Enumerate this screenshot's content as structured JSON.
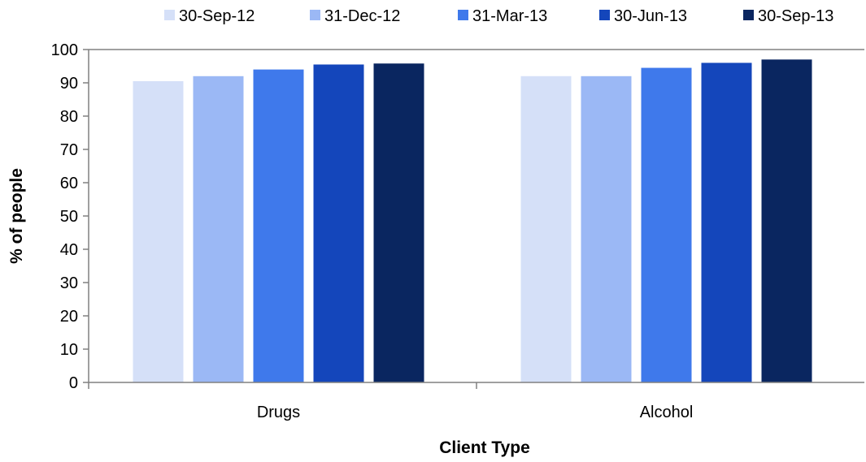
{
  "chart_data": {
    "type": "bar",
    "title": "",
    "xlabel": "Client Type",
    "ylabel": "% of people",
    "ylim": [
      0,
      100
    ],
    "yticks": [
      0,
      10,
      20,
      30,
      40,
      50,
      60,
      70,
      80,
      90,
      100
    ],
    "grid": false,
    "legend_position": "top",
    "categories": [
      "Drugs",
      "Alcohol"
    ],
    "series": [
      {
        "name": "30-Sep-12",
        "color": "#d5e0f8",
        "values": [
          90.5,
          92.0
        ]
      },
      {
        "name": "31-Dec-12",
        "color": "#9bb8f5",
        "values": [
          92.0,
          92.0
        ]
      },
      {
        "name": "31-Mar-13",
        "color": "#3f79eb",
        "values": [
          94.0,
          94.5
        ]
      },
      {
        "name": "30-Jun-13",
        "color": "#1446bb",
        "values": [
          95.5,
          96.0
        ]
      },
      {
        "name": "30-Sep-13",
        "color": "#0a2660",
        "values": [
          95.8,
          97.0
        ]
      }
    ]
  }
}
